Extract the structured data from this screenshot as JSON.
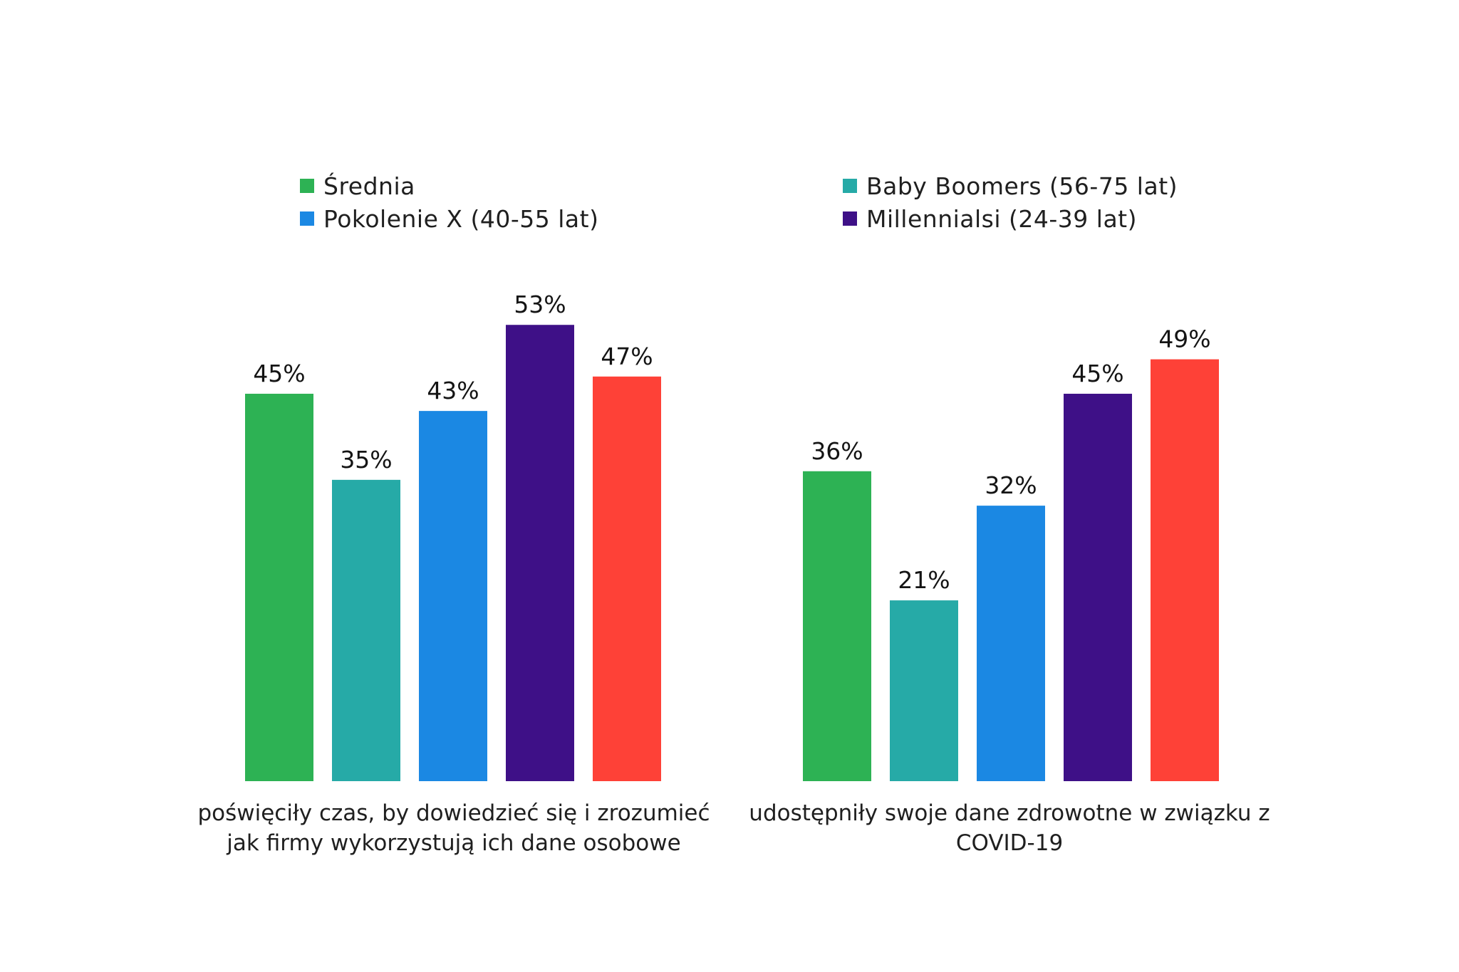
{
  "chart_data": {
    "type": "bar",
    "title": "",
    "xlabel": "",
    "ylabel": "",
    "ylim": [
      0,
      60
    ],
    "grid": false,
    "legend_position": "top",
    "value_suffix": "%",
    "categories": [
      {
        "label_lines": [
          "poświęciły czas, by dowiedzieć się i zrozumieć",
          "jak firmy wykorzystują ich dane osobowe"
        ]
      },
      {
        "label_lines": [
          "udostępniły swoje dane zdrowotne w związku z",
          "COVID-19"
        ]
      }
    ],
    "series": [
      {
        "name": "Średnia",
        "color": "#2db254",
        "values": [
          45,
          36
        ],
        "in_legend": true
      },
      {
        "name": "Baby Boomers (56-75 lat)",
        "color": "#26aaa7",
        "values": [
          35,
          21
        ],
        "in_legend": true
      },
      {
        "name": "Pokolenie X (40-55 lat)",
        "color": "#1b88e3",
        "values": [
          43,
          32
        ],
        "in_legend": true
      },
      {
        "name": "Millennialsi (24-39 lat)",
        "color": "#3e1087",
        "values": [
          53,
          45
        ],
        "in_legend": true
      },
      {
        "name": "",
        "color": "#fe4137",
        "values": [
          47,
          49
        ],
        "in_legend": false
      }
    ],
    "legend": [
      {
        "label": "Średnia",
        "color": "#2db254"
      },
      {
        "label": "Pokolenie X (40-55 lat)",
        "color": "#1b88e3"
      },
      {
        "label": "Baby Boomers (56-75 lat)",
        "color": "#26aaa7"
      },
      {
        "label": "Millennialsi (24-39 lat)",
        "color": "#3e1087"
      }
    ]
  }
}
